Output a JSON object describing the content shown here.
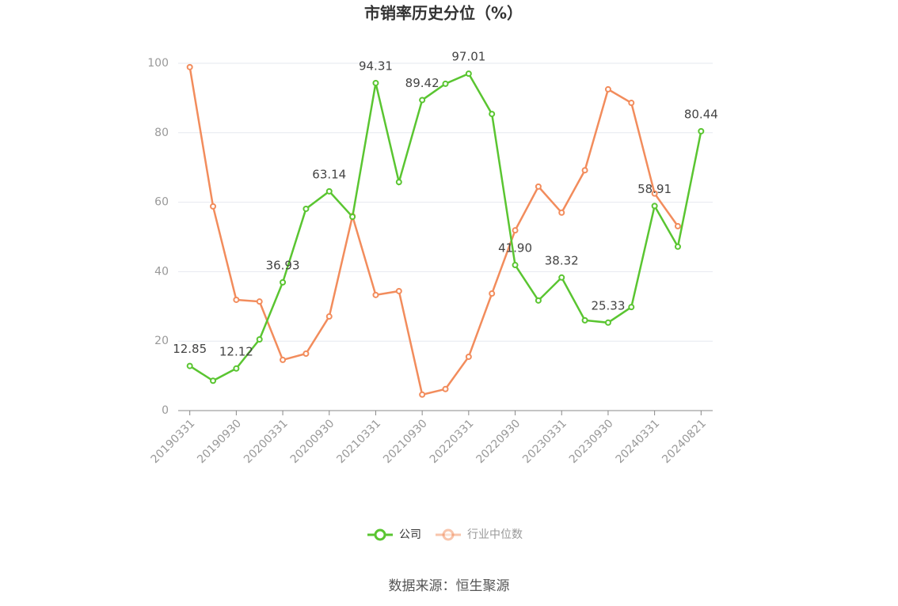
{
  "chart_data": {
    "type": "line",
    "title": "市销率历史分位（%）",
    "categories": [
      "20190331",
      null,
      "20190930",
      null,
      "20200331",
      null,
      "20200930",
      null,
      "20210331",
      null,
      "20210930",
      null,
      "20220331",
      null,
      "20220930",
      null,
      "20230331",
      null,
      "20230930",
      null,
      "20240331",
      null,
      "20240821"
    ],
    "series": [
      {
        "name": "公司",
        "color": "#5ac531",
        "values": [
          12.85,
          8.6,
          12.12,
          20.5,
          36.93,
          58.1,
          63.14,
          55.8,
          94.31,
          65.8,
          89.42,
          94.1,
          97.01,
          85.4,
          41.9,
          31.7,
          38.32,
          26.0,
          25.33,
          29.8,
          58.91,
          47.2,
          80.44
        ],
        "value_labels": [
          "12.85",
          null,
          "12.12",
          null,
          "36.93",
          null,
          "63.14",
          null,
          "94.31",
          null,
          "89.42",
          null,
          "97.01",
          null,
          "41.90",
          null,
          "38.32",
          null,
          "25.33",
          null,
          "58.91",
          null,
          "80.44"
        ]
      },
      {
        "name": "行业中位数",
        "color": "#f28c5c",
        "values": [
          98.9,
          58.8,
          31.9,
          31.4,
          14.6,
          16.4,
          27.1,
          56.0,
          33.3,
          34.4,
          4.6,
          6.2,
          15.5,
          33.7,
          51.9,
          64.5,
          57.0,
          69.2,
          92.5,
          88.6,
          62.5,
          53.1,
          null
        ]
      }
    ],
    "ylim": [
      0,
      100
    ],
    "yticks": [
      0,
      20,
      40,
      60,
      80,
      100
    ],
    "grid": true,
    "source": "数据来源：恒生聚源"
  }
}
